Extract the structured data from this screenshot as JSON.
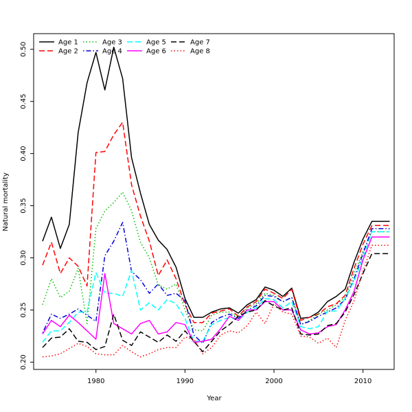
{
  "chart_data": {
    "type": "line",
    "title": "",
    "xlabel": "Year",
    "ylabel": "Natural mortality",
    "xlim": [
      1973,
      2013.5
    ],
    "ylim": [
      0.193,
      0.515
    ],
    "x_ticks": [
      1980,
      1990,
      2000,
      2010
    ],
    "y_ticks": [
      0.2,
      0.25,
      0.3,
      0.35,
      0.4,
      0.45,
      0.5
    ],
    "y_tick_labels": [
      "0.20",
      "0.25",
      "0.30",
      "0.35",
      "0.40",
      "0.45",
      "0.50"
    ],
    "grid": false,
    "legend_position": "top-left",
    "x": [
      1974,
      1975,
      1976,
      1977,
      1978,
      1979,
      1980,
      1981,
      1982,
      1983,
      1984,
      1985,
      1986,
      1987,
      1988,
      1989,
      1990,
      1991,
      1992,
      1993,
      1994,
      1995,
      1996,
      1997,
      1998,
      1999,
      2000,
      2001,
      2002,
      2003,
      2004,
      2005,
      2006,
      2007,
      2008,
      2009,
      2010,
      2011,
      2012,
      2013
    ],
    "series": [
      {
        "name": "Age 1",
        "color": "#000000",
        "dash": "solid",
        "values": [
          0.316,
          0.339,
          0.309,
          0.332,
          0.42,
          0.468,
          0.497,
          0.461,
          0.502,
          0.472,
          0.396,
          0.362,
          0.332,
          0.317,
          0.308,
          0.291,
          0.261,
          0.243,
          0.243,
          0.248,
          0.251,
          0.252,
          0.247,
          0.255,
          0.26,
          0.272,
          0.269,
          0.263,
          0.271,
          0.242,
          0.243,
          0.248,
          0.258,
          0.263,
          0.27,
          0.296,
          0.318,
          0.335,
          0.335,
          0.335
        ]
      },
      {
        "name": "Age 2",
        "color": "#ff0000",
        "dash": "longdash",
        "values": [
          0.293,
          0.315,
          0.285,
          0.3,
          0.292,
          0.273,
          0.401,
          0.402,
          0.418,
          0.43,
          0.37,
          0.34,
          0.316,
          0.283,
          0.298,
          0.28,
          0.255,
          0.238,
          0.238,
          0.247,
          0.249,
          0.251,
          0.244,
          0.253,
          0.258,
          0.27,
          0.266,
          0.261,
          0.27,
          0.24,
          0.243,
          0.246,
          0.253,
          0.256,
          0.264,
          0.29,
          0.313,
          0.331,
          0.331,
          0.331
        ]
      },
      {
        "name": "Age 3",
        "color": "#00bb00",
        "dash": "dotted",
        "values": [
          0.255,
          0.28,
          0.262,
          0.268,
          0.29,
          0.237,
          0.328,
          0.345,
          0.353,
          0.363,
          0.345,
          0.315,
          0.3,
          0.274,
          0.27,
          0.275,
          0.25,
          0.231,
          0.23,
          0.245,
          0.248,
          0.248,
          0.243,
          0.252,
          0.256,
          0.266,
          0.264,
          0.258,
          0.262,
          0.236,
          0.24,
          0.246,
          0.25,
          0.255,
          0.262,
          0.285,
          0.306,
          0.325,
          0.325,
          0.325
        ]
      },
      {
        "name": "Age 4",
        "color": "#0000dd",
        "dash": "dotdash",
        "values": [
          0.228,
          0.246,
          0.242,
          0.246,
          0.251,
          0.245,
          0.239,
          0.302,
          0.316,
          0.334,
          0.287,
          0.279,
          0.266,
          0.275,
          0.264,
          0.266,
          0.259,
          0.226,
          0.218,
          0.238,
          0.243,
          0.246,
          0.242,
          0.25,
          0.254,
          0.264,
          0.263,
          0.258,
          0.262,
          0.236,
          0.239,
          0.244,
          0.248,
          0.252,
          0.26,
          0.28,
          0.304,
          0.328,
          0.328,
          0.328
        ]
      },
      {
        "name": "Age 5",
        "color": "#00ffff",
        "dash": "longdash",
        "values": [
          0.219,
          0.23,
          0.23,
          0.238,
          0.248,
          0.248,
          0.286,
          0.266,
          0.266,
          0.263,
          0.288,
          0.25,
          0.257,
          0.25,
          0.26,
          0.256,
          0.242,
          0.22,
          0.22,
          0.236,
          0.24,
          0.243,
          0.24,
          0.248,
          0.252,
          0.261,
          0.26,
          0.252,
          0.258,
          0.234,
          0.232,
          0.234,
          0.249,
          0.249,
          0.261,
          0.278,
          0.3,
          0.325,
          0.325,
          0.325
        ]
      },
      {
        "name": "Age 6",
        "color": "#ff00ff",
        "dash": "solid",
        "values": [
          0.227,
          0.24,
          0.234,
          0.245,
          0.238,
          0.23,
          0.222,
          0.285,
          0.237,
          0.232,
          0.227,
          0.237,
          0.24,
          0.227,
          0.229,
          0.238,
          0.236,
          0.219,
          0.22,
          0.222,
          0.232,
          0.244,
          0.24,
          0.25,
          0.25,
          0.258,
          0.258,
          0.25,
          0.25,
          0.231,
          0.227,
          0.228,
          0.234,
          0.236,
          0.25,
          0.268,
          0.298,
          0.32,
          0.32,
          0.32
        ]
      },
      {
        "name": "Age 7",
        "color": "#000000",
        "dash": "longdash",
        "values": [
          0.214,
          0.223,
          0.224,
          0.232,
          0.22,
          0.219,
          0.212,
          0.215,
          0.246,
          0.221,
          0.216,
          0.229,
          0.224,
          0.219,
          0.226,
          0.22,
          0.23,
          0.22,
          0.21,
          0.22,
          0.23,
          0.236,
          0.244,
          0.248,
          0.25,
          0.259,
          0.254,
          0.25,
          0.252,
          0.227,
          0.226,
          0.227,
          0.235,
          0.237,
          0.248,
          0.265,
          0.285,
          0.304,
          0.304,
          0.304
        ]
      },
      {
        "name": "Age 8",
        "color": "#ff0000",
        "dash": "dotted",
        "values": [
          0.205,
          0.206,
          0.208,
          0.213,
          0.218,
          0.215,
          0.208,
          0.207,
          0.207,
          0.216,
          0.21,
          0.205,
          0.208,
          0.212,
          0.214,
          0.214,
          0.224,
          0.222,
          0.208,
          0.214,
          0.226,
          0.23,
          0.228,
          0.235,
          0.248,
          0.237,
          0.256,
          0.248,
          0.246,
          0.225,
          0.224,
          0.218,
          0.223,
          0.214,
          0.24,
          0.259,
          0.287,
          0.312,
          0.312,
          0.312
        ]
      }
    ]
  }
}
